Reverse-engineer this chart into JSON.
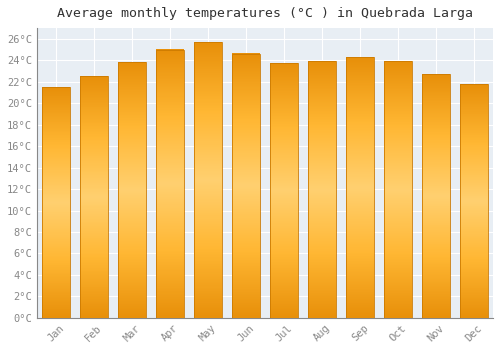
{
  "months": [
    "Jan",
    "Feb",
    "Mar",
    "Apr",
    "May",
    "Jun",
    "Jul",
    "Aug",
    "Sep",
    "Oct",
    "Nov",
    "Dec"
  ],
  "values": [
    21.5,
    22.5,
    23.8,
    25.0,
    25.7,
    24.6,
    23.7,
    23.9,
    24.3,
    23.9,
    22.7,
    21.8
  ],
  "bar_color_center": "#FFB733",
  "bar_color_edge": "#E07000",
  "bar_edge_color": "#CC7A00",
  "title": "Average monthly temperatures (°C ) in Quebrada Larga",
  "ylim": [
    0,
    27
  ],
  "ytick_step": 2,
  "figure_bg": "#FFFFFF",
  "plot_bg": "#E8EEF4",
  "grid_color": "#FFFFFF",
  "title_fontsize": 9.5,
  "tick_fontsize": 7.5,
  "font_family": "monospace",
  "tick_color": "#888888",
  "bar_width": 0.72
}
